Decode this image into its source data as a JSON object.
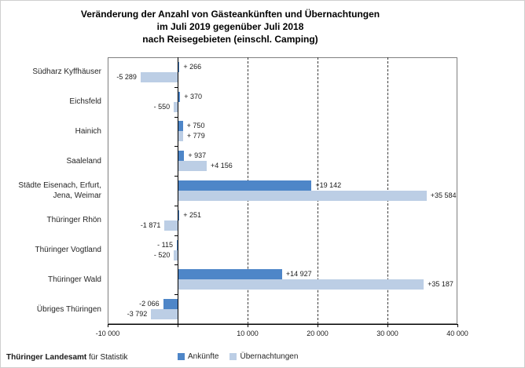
{
  "chart_data": {
    "type": "bar",
    "orientation": "horizontal",
    "title": "Veränderung der Anzahl von Gästeankünften und Übernachtungen im Juli 2019 gegenüber Juli 2018 nach Reisegebieten (einschl. Camping)",
    "title_lines": [
      "Veränderung  der Anzahl von Gästeankünften  und Übernachtungen",
      "im Juli 2019 gegenüber  Juli 2018",
      "nach Reisegebieten (einschl. Camping)"
    ],
    "categories": [
      "Südharz Kyffhäuser",
      "Eichsfeld",
      "Hainich",
      "Saaleland",
      "Städte Eisenach, Erfurt, Jena, Weimar",
      "Thüringer Rhön",
      "Thüringer Vogtland",
      "Thüringer Wald",
      "Übriges Thüringen"
    ],
    "series": [
      {
        "name": "Ankünfte",
        "color": "#4e86c8",
        "values": [
          266,
          370,
          750,
          937,
          19142,
          251,
          -115,
          14927,
          -2066
        ],
        "labels": [
          "+ 266",
          "+ 370",
          "+ 750",
          "+ 937",
          "+19 142",
          "+ 251",
          "- 115",
          "+14 927",
          "-2 066"
        ]
      },
      {
        "name": "Übernachtungen",
        "color": "#bccee5",
        "values": [
          -5289,
          -550,
          779,
          4156,
          35584,
          -1871,
          -520,
          35187,
          -3792
        ],
        "labels": [
          "-5 289",
          "- 550",
          "+ 779",
          "+4 156",
          "+35 584",
          "-1 871",
          "- 520",
          "+35 187",
          "-3 792"
        ]
      }
    ],
    "xlim": [
      -10000,
      40000
    ],
    "xticks": [
      {
        "value": -10000,
        "label": "-10 000"
      },
      {
        "value": 0,
        "label": ""
      },
      {
        "value": 10000,
        "label": "10 000"
      },
      {
        "value": 20000,
        "label": "20 000"
      },
      {
        "value": 30000,
        "label": "30 000"
      },
      {
        "value": 40000,
        "label": "40 000"
      }
    ],
    "gridlines": [
      10000,
      20000,
      30000
    ],
    "grid": "vertical-dashed",
    "legend_position": "bottom"
  },
  "footer": {
    "source_bold": "Thüringer Landesamt",
    "source_rest": "für Statistik"
  }
}
